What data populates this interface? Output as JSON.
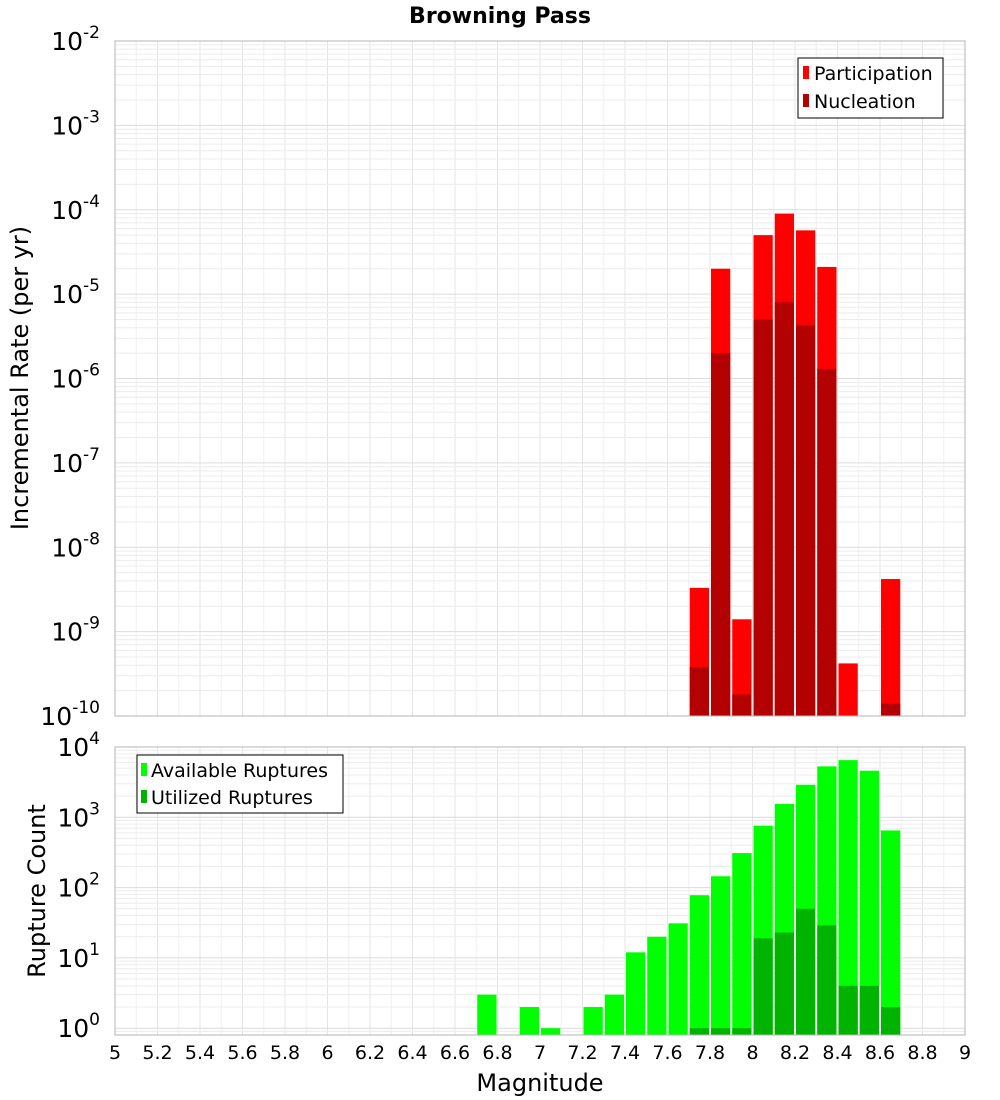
{
  "chart_data": [
    {
      "type": "bar",
      "title": "Browning Pass",
      "xlabel": "",
      "ylabel": "Incremental Rate (per yr)",
      "y_scale": "log",
      "ylim": [
        1e-10,
        0.01
      ],
      "y_tick_exponents": [
        -10,
        -9,
        -8,
        -7,
        -6,
        -5,
        -4,
        -3,
        -2
      ],
      "xlim": [
        5,
        9
      ],
      "bin_width": 0.1,
      "grid": true,
      "legend_position": "top-right",
      "colors": {
        "Participation": "#ff0000",
        "Nucleation": "#b30000"
      },
      "x": [
        7.75,
        7.85,
        7.95,
        8.05,
        8.15,
        8.25,
        8.35,
        8.45,
        8.65
      ],
      "series": [
        {
          "name": "Participation",
          "values": [
            3.3e-09,
            2e-05,
            1.4e-09,
            5e-05,
            9e-05,
            5.7e-05,
            2.1e-05,
            4.2e-10,
            4.2e-09
          ]
        },
        {
          "name": "Nucleation",
          "values": [
            3.8e-10,
            2e-06,
            1.8e-10,
            5e-06,
            8e-06,
            4.3e-06,
            1.3e-06,
            null,
            1.4e-10
          ]
        }
      ]
    },
    {
      "type": "bar",
      "title": "",
      "xlabel": "Magnitude",
      "ylabel": "Rupture Count",
      "y_scale": "log",
      "ylim": [
        0.8,
        10000
      ],
      "y_tick_exponents": [
        0,
        1,
        2,
        3,
        4
      ],
      "xlim": [
        5,
        9
      ],
      "x_ticks": [
        "5",
        "5.2",
        "5.4",
        "5.6",
        "5.8",
        "6",
        "6.2",
        "6.4",
        "6.6",
        "6.8",
        "7",
        "7.2",
        "7.4",
        "7.6",
        "7.8",
        "8",
        "8.2",
        "8.4",
        "8.6",
        "8.8",
        "9"
      ],
      "bin_width": 0.1,
      "grid": true,
      "legend_position": "top-left",
      "colors": {
        "Available Ruptures": "#00ff00",
        "Utilized Ruptures": "#00b300"
      },
      "x": [
        6.75,
        6.95,
        7.05,
        7.25,
        7.35,
        7.45,
        7.55,
        7.65,
        7.75,
        7.85,
        7.95,
        8.05,
        8.15,
        8.25,
        8.35,
        8.45,
        8.55,
        8.65
      ],
      "series": [
        {
          "name": "Available Ruptures",
          "values": [
            3,
            2,
            1,
            2,
            3,
            12,
            20,
            31,
            78,
            145,
            310,
            760,
            1550,
            2900,
            5300,
            6500,
            4600,
            650
          ]
        },
        {
          "name": "Utilized Ruptures",
          "values": [
            null,
            null,
            null,
            null,
            null,
            null,
            null,
            null,
            1,
            1,
            1,
            19,
            23,
            50,
            29,
            4,
            4,
            2
          ]
        }
      ]
    }
  ]
}
